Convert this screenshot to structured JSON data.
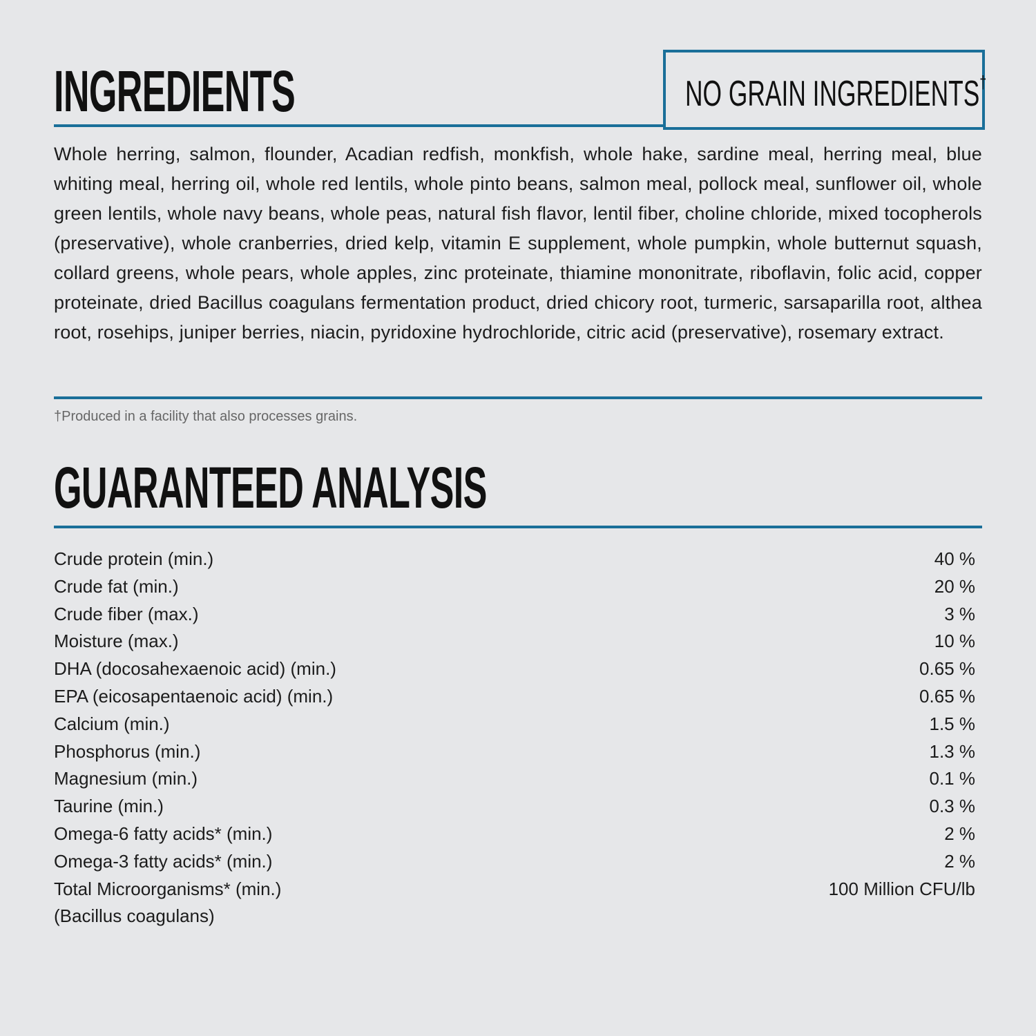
{
  "ingredients": {
    "title": "INGREDIENTS",
    "badge": "NO GRAIN INGREDIENTS",
    "badge_mark": "†",
    "text": "Whole herring, salmon, flounder, Acadian redfish, monkfish, whole hake, sardine meal, herring meal, blue whiting meal, herring oil, whole red lentils, whole pinto beans, salmon meal, pollock meal, sunflower oil, whole green lentils, whole navy beans, whole peas, natural fish flavor, lentil fiber, choline chloride, mixed tocopherols (preservative), whole cranberries, dried kelp, vitamin E supplement, whole pumpkin, whole butternut squash, collard greens, whole pears, whole apples, zinc proteinate, thiamine mononitrate, riboflavin, folic acid, copper proteinate, dried Bacillus coagulans fermentation product, dried chicory root, turmeric, sarsaparilla root, althea root, rosehips, juniper berries, niacin, pyridoxine hydrochloride, citric acid (preservative), rosemary extract.",
    "footnote": "†Produced in a facility that also processes grains."
  },
  "analysis": {
    "title": "GUARANTEED ANALYSIS",
    "rows": [
      {
        "label": "Crude protein (min.)",
        "value": "40 %"
      },
      {
        "label": "Crude fat (min.)",
        "value": "20 %"
      },
      {
        "label": "Crude fiber (max.)",
        "value": "3 %"
      },
      {
        "label": "Moisture (max.)",
        "value": "10 %"
      },
      {
        "label": "DHA (docosahexaenoic acid) (min.)",
        "value": "0.65 %"
      },
      {
        "label": "EPA (eicosapentaenoic acid) (min.)",
        "value": "0.65 %"
      },
      {
        "label": "Calcium (min.)",
        "value": "1.5 %"
      },
      {
        "label": "Phosphorus (min.)",
        "value": "1.3 %"
      },
      {
        "label": "Magnesium (min.)",
        "value": "0.1 %"
      },
      {
        "label": "Taurine (min.)",
        "value": "0.3 %"
      },
      {
        "label": "Omega-6 fatty acids* (min.)",
        "value": "2 %"
      },
      {
        "label": "Omega-3 fatty acids* (min.)",
        "value": "2 %"
      },
      {
        "label": "Total Microorganisms* (min.)",
        "value": "100 Million CFU/lb"
      },
      {
        "label": "(Bacillus coagulans)",
        "value": ""
      }
    ]
  },
  "colors": {
    "accent": "#1a6f99",
    "background": "#e6e7e9"
  }
}
